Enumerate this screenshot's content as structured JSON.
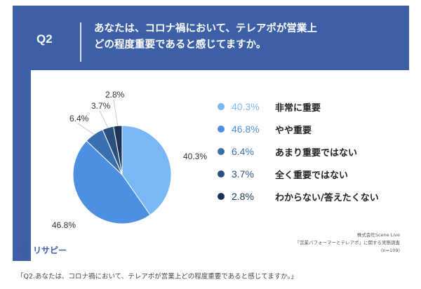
{
  "header": {
    "question_id": "Q2",
    "question_line1": "あなたは、コロナ禍において、テレアポが営業上",
    "question_line2": "どの程度重要であると感じてますか。"
  },
  "chart_data": {
    "type": "pie",
    "title": "",
    "slices": [
      {
        "label": "非常に重要",
        "value": 40.3,
        "pct_text": "40.3%",
        "color": "#7ab8f5"
      },
      {
        "label": "やや重要",
        "value": 46.8,
        "pct_text": "46.8%",
        "color": "#4d8fe0"
      },
      {
        "label": "あまり重要ではない",
        "value": 6.4,
        "pct_text": "6.4%",
        "color": "#3a6fb0"
      },
      {
        "label": "全く重要ではない",
        "value": 3.7,
        "pct_text": "3.7%",
        "color": "#2b4f80"
      },
      {
        "label": "わからない/答えたくない",
        "value": 2.8,
        "pct_text": "2.8%",
        "color": "#1c3355"
      }
    ],
    "legend_position": "right"
  },
  "source": {
    "line1": "株式会社Scene Live",
    "line2": "「営業パフォーマーとテレアポ」に関する実態調査",
    "line3": "(n=109)"
  },
  "logo": {
    "text": "リサピー"
  },
  "caption": "「Q2.あなたは、コロナ禍において、テレアポが営業上どの程度重要であると感じてますか。」"
}
